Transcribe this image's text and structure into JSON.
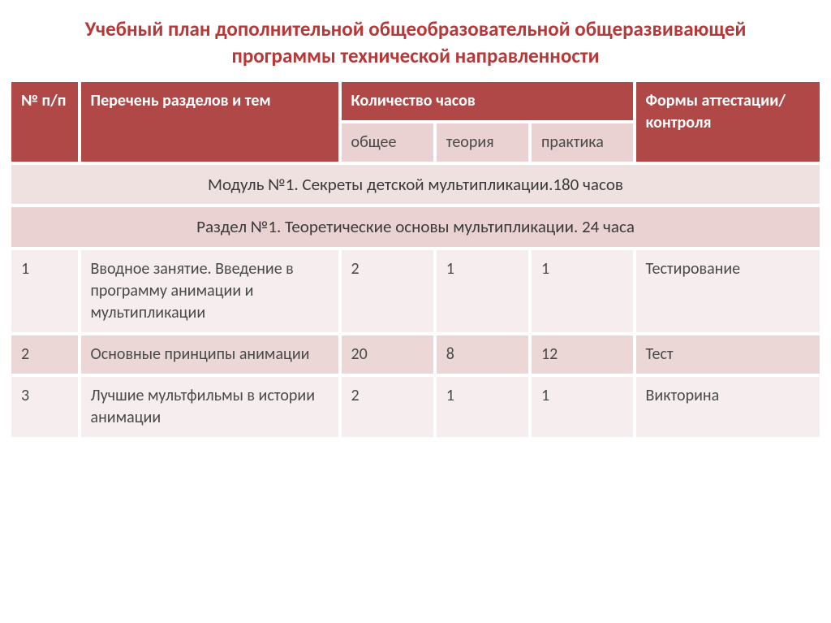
{
  "title": "Учебный план дополнительной общеобразовательной общеразвивающей программы технической направленности",
  "header": {
    "num": "№ п/п",
    "sections": "Перечень разделов  и  тем",
    "hours": "Количество часов",
    "total": "общее",
    "theory": "теория",
    "practice": "практика",
    "forms": "Формы аттестации/контроля"
  },
  "module_row": "Модуль №1. Секреты детской мультипликации.180 часов",
  "section_row": "Раздел №1. Теоретические основы мультипликации. 24 часа",
  "rows": [
    {
      "num": "1",
      "name": "Вводное занятие. Введение в программу анимации и мультипликации",
      "total": "2",
      "theory": "1",
      "practice": "1",
      "form": "Тестирование"
    },
    {
      "num": "2",
      "name": "Основные принципы анимации",
      "total": "20",
      "theory": "8",
      "practice": "12",
      "form": "Тест"
    },
    {
      "num": "3",
      "name": "Лучшие мультфильмы в истории анимации",
      "total": "2",
      "theory": "1",
      "practice": "1",
      "form": "Викторина"
    }
  ],
  "styling": {
    "title_color": "#b73838",
    "header_bg": "#b14848",
    "header_text": "#ffffff",
    "subheader_bg": "#e9d2d1",
    "module_bg": "#efe1e0",
    "section_bg": "#e9d2d1",
    "row_odd_bg": "#f6eeee",
    "row_even_bg": "#ebd7d6",
    "cell_text": "#4a4a4a",
    "border_spacing": 4,
    "title_fontsize": 25,
    "cell_fontsize": 20,
    "column_widths": {
      "num": 72,
      "name": 280,
      "total": 100,
      "theory": 100,
      "practice": 110,
      "form": 200
    }
  }
}
